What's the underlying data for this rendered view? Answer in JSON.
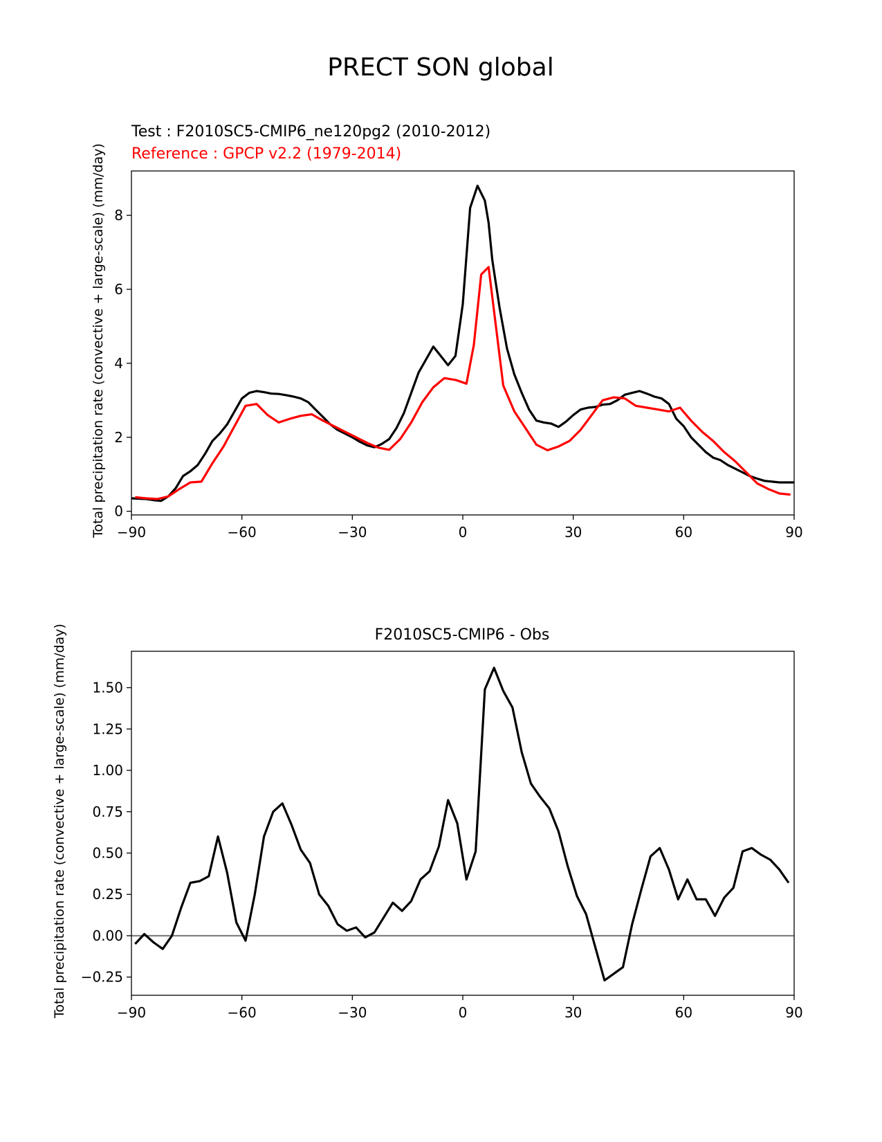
{
  "figure": {
    "title": "PRECT SON global"
  },
  "chart_data": [
    {
      "type": "line",
      "title": "",
      "subtitle_test": "Test : F2010SC5-CMIP6_ne120pg2 (2010-2012)",
      "subtitle_reference": "Reference : GPCP v2.2 (1979-2014)",
      "xlabel": "",
      "ylabel": "Total precipitation rate (convective + large-scale) (mm/day)",
      "xlim": [
        -90,
        90
      ],
      "ylim": [
        -0.1,
        9.2
      ],
      "xticks": [
        -90,
        -60,
        -30,
        0,
        30,
        60,
        90
      ],
      "xtick_labels": [
        "−90",
        "−60",
        "−30",
        "0",
        "30",
        "60",
        "90"
      ],
      "yticks": [
        0,
        2,
        4,
        6,
        8
      ],
      "ytick_labels": [
        "0",
        "2",
        "4",
        "6",
        "8"
      ],
      "grid": false,
      "series": [
        {
          "role": "test",
          "color": "#000000",
          "x": [
            -90,
            -88,
            -86,
            -84,
            -82,
            -80,
            -78,
            -76,
            -74,
            -72,
            -70,
            -68,
            -66,
            -64,
            -62,
            -60,
            -58,
            -56,
            -54,
            -52,
            -50,
            -48,
            -46,
            -44,
            -42,
            -40,
            -38,
            -36,
            -34,
            -32,
            -30,
            -28,
            -26,
            -24,
            -22,
            -20,
            -18,
            -16,
            -14,
            -12,
            -10,
            -8,
            -6,
            -4,
            -2,
            0,
            2,
            4,
            6,
            7,
            8,
            10,
            12,
            14,
            16,
            18,
            20,
            22,
            24,
            26,
            28,
            30,
            32,
            34,
            36,
            38,
            40,
            42,
            44,
            46,
            48,
            50,
            52,
            54,
            56,
            58,
            60,
            62,
            64,
            66,
            68,
            70,
            72,
            74,
            76,
            78,
            80,
            82,
            84,
            86,
            88,
            90
          ],
          "y": [
            0.35,
            0.34,
            0.33,
            0.3,
            0.28,
            0.4,
            0.62,
            0.95,
            1.08,
            1.25,
            1.55,
            1.9,
            2.1,
            2.35,
            2.7,
            3.05,
            3.2,
            3.25,
            3.22,
            3.18,
            3.17,
            3.14,
            3.1,
            3.05,
            2.95,
            2.75,
            2.55,
            2.35,
            2.2,
            2.1,
            2.0,
            1.88,
            1.78,
            1.73,
            1.82,
            1.95,
            2.25,
            2.65,
            3.2,
            3.75,
            4.1,
            4.45,
            4.2,
            3.95,
            4.2,
            5.6,
            8.2,
            8.8,
            8.4,
            7.8,
            6.8,
            5.5,
            4.4,
            3.7,
            3.2,
            2.75,
            2.45,
            2.4,
            2.37,
            2.28,
            2.42,
            2.6,
            2.75,
            2.8,
            2.82,
            2.88,
            2.9,
            3.0,
            3.15,
            3.2,
            3.25,
            3.18,
            3.1,
            3.05,
            2.9,
            2.5,
            2.3,
            2.0,
            1.8,
            1.6,
            1.45,
            1.38,
            1.25,
            1.15,
            1.05,
            0.95,
            0.88,
            0.82,
            0.8,
            0.78,
            0.78,
            0.78
          ]
        },
        {
          "role": "reference",
          "color": "#ff0000",
          "x": [
            -89,
            -86,
            -83,
            -80,
            -77,
            -74,
            -71,
            -68,
            -65,
            -62,
            -59,
            -56,
            -53,
            -50,
            -47,
            -44,
            -41,
            -38,
            -35,
            -32,
            -29,
            -26,
            -23,
            -20,
            -17,
            -14,
            -11,
            -8,
            -5,
            -2,
            1,
            3,
            5,
            7,
            9,
            11,
            14,
            17,
            20,
            23,
            26,
            29,
            32,
            35,
            38,
            41,
            44,
            47,
            50,
            53,
            56,
            59,
            62,
            65,
            68,
            71,
            74,
            77,
            80,
            83,
            86,
            89
          ],
          "y": [
            0.38,
            0.35,
            0.33,
            0.4,
            0.6,
            0.78,
            0.8,
            1.3,
            1.75,
            2.3,
            2.85,
            2.9,
            2.6,
            2.4,
            2.5,
            2.58,
            2.62,
            2.45,
            2.3,
            2.15,
            2.0,
            1.85,
            1.72,
            1.66,
            1.95,
            2.4,
            2.95,
            3.35,
            3.6,
            3.55,
            3.45,
            4.5,
            6.4,
            6.6,
            5.0,
            3.4,
            2.7,
            2.25,
            1.8,
            1.65,
            1.75,
            1.9,
            2.2,
            2.6,
            3.0,
            3.08,
            3.05,
            2.85,
            2.8,
            2.75,
            2.7,
            2.8,
            2.45,
            2.15,
            1.9,
            1.6,
            1.35,
            1.05,
            0.75,
            0.6,
            0.48,
            0.45
          ]
        }
      ]
    },
    {
      "type": "line",
      "title": "F2010SC5-CMIP6 - Obs",
      "xlabel": "",
      "ylabel": "Total precipitation rate (convective + large-scale) (mm/day)",
      "xlim": [
        -90,
        90
      ],
      "ylim": [
        -0.36,
        1.72
      ],
      "xticks": [
        -90,
        -60,
        -30,
        0,
        30,
        60,
        90
      ],
      "xtick_labels": [
        "−90",
        "−60",
        "−30",
        "0",
        "30",
        "60",
        "90"
      ],
      "yticks": [
        -0.25,
        0,
        0.25,
        0.5,
        0.75,
        1.0,
        1.25,
        1.5
      ],
      "ytick_labels": [
        "−0.25",
        "0.00",
        "0.25",
        "0.50",
        "0.75",
        "1.00",
        "1.25",
        "1.50"
      ],
      "grid": false,
      "zero_line_color": "#808080",
      "series": [
        {
          "role": "difference",
          "color": "#000000",
          "x": [
            -89,
            -86.5,
            -84,
            -81.5,
            -79,
            -76.5,
            -74,
            -71.5,
            -69,
            -66.5,
            -64,
            -61.5,
            -59,
            -56.5,
            -54,
            -51.5,
            -49,
            -46.5,
            -44,
            -41.5,
            -39,
            -36.5,
            -34,
            -31.5,
            -29,
            -26.5,
            -24,
            -21.5,
            -19,
            -16.5,
            -14,
            -11.5,
            -9,
            -6.5,
            -4,
            -1.5,
            1,
            3.5,
            6,
            8.5,
            11,
            13.5,
            16,
            18.5,
            21,
            23.5,
            26,
            28.5,
            31,
            33.5,
            36,
            38.5,
            41,
            43.5,
            46,
            48.5,
            51,
            53.5,
            56,
            58.5,
            61,
            63.5,
            66,
            68.5,
            71,
            73.5,
            76,
            78.5,
            81,
            83.5,
            86,
            88.5
          ],
          "y": [
            -0.05,
            0.01,
            -0.04,
            -0.08,
            0.0,
            0.17,
            0.32,
            0.33,
            0.36,
            0.6,
            0.38,
            0.08,
            -0.03,
            0.25,
            0.6,
            0.75,
            0.8,
            0.67,
            0.52,
            0.44,
            0.25,
            0.18,
            0.07,
            0.03,
            0.05,
            -0.01,
            0.02,
            0.11,
            0.2,
            0.15,
            0.21,
            0.34,
            0.39,
            0.54,
            0.82,
            0.68,
            0.34,
            0.51,
            1.49,
            1.62,
            1.48,
            1.38,
            1.11,
            0.92,
            0.84,
            0.77,
            0.63,
            0.42,
            0.24,
            0.13,
            -0.07,
            -0.27,
            -0.23,
            -0.19,
            0.07,
            0.28,
            0.48,
            0.53,
            0.4,
            0.22,
            0.34,
            0.22,
            0.22,
            0.12,
            0.23,
            0.29,
            0.51,
            0.53,
            0.49,
            0.46,
            0.4,
            0.32
          ]
        }
      ]
    }
  ]
}
